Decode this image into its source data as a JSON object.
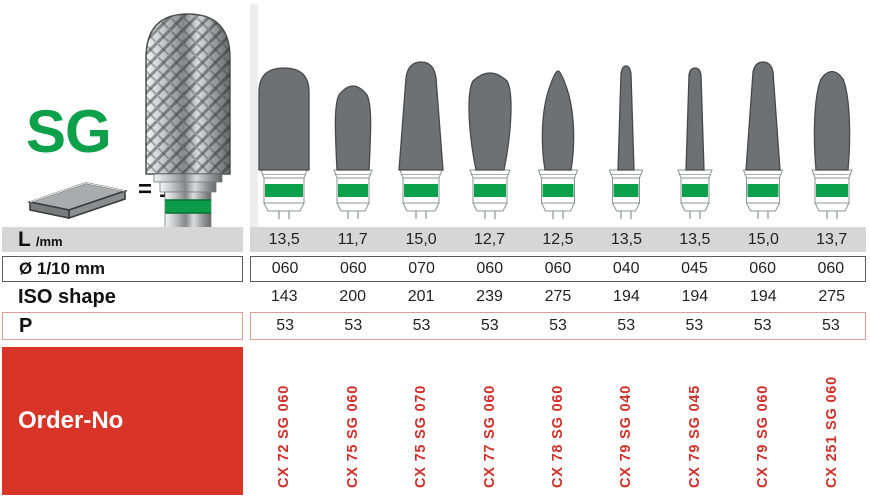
{
  "page": {
    "series": "SG",
    "quantity_note": "= 1"
  },
  "table": {
    "rows": {
      "l": {
        "label": "L",
        "unit": "/mm",
        "values": [
          "13,5",
          "11,7",
          "15,0",
          "12,7",
          "12,5",
          "13,5",
          "13,5",
          "15,0",
          "13,7"
        ]
      },
      "d": {
        "label": "Ø 1/10 mm",
        "values": [
          "060",
          "060",
          "070",
          "060",
          "060",
          "040",
          "045",
          "060",
          "060"
        ]
      },
      "iso": {
        "label": "ISO shape",
        "values": [
          "143",
          "200",
          "201",
          "239",
          "275",
          "194",
          "194",
          "194",
          "275"
        ]
      },
      "p": {
        "label": "P",
        "values": [
          "53",
          "53",
          "53",
          "53",
          "53",
          "53",
          "53",
          "53",
          "53"
        ]
      }
    }
  },
  "order": {
    "label": "Order-No",
    "numbers": [
      "CX 72 SG 060",
      "CX 75 SG 060",
      "CX 75 SG 070",
      "CX 77 SG 060",
      "CX 78 SG 060",
      "CX 79 SG 040",
      "CX 79 SG 045",
      "CX 79 SG 060",
      "CX 251 SG 060"
    ]
  },
  "figures": {
    "shapes": [
      "cylinder-round",
      "bud",
      "cone-round-wide",
      "egg",
      "flame",
      "taper-slim-narrow",
      "taper-slim",
      "taper-round",
      "flame-large"
    ]
  },
  "colors": {
    "green": "#0ba04c",
    "red": "#d93428",
    "head_gray": "#6e7174",
    "row_gray": "#d6d6d6"
  }
}
